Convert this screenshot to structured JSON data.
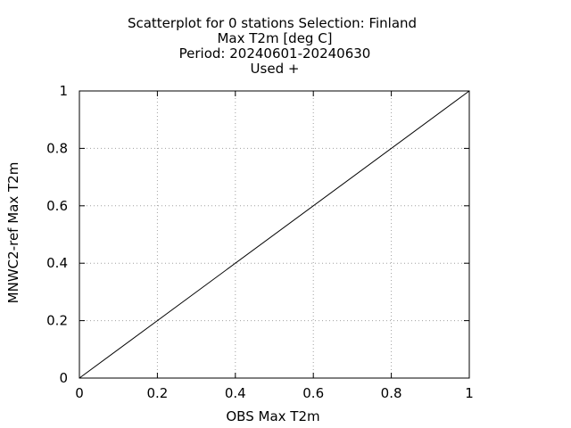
{
  "chart_data": {
    "type": "scatter",
    "title_lines": [
      "Scatterplot for    0 stations Selection: Finland",
      "Max T2m [deg C]",
      "Period: 20240601-20240630",
      "Used  +"
    ],
    "xlabel": "OBS Max T2m",
    "ylabel": "MNWC2-ref Max T2m",
    "xlim": [
      0,
      1
    ],
    "ylim": [
      0,
      1
    ],
    "x_ticks": [
      "0",
      "0.2",
      "0.4",
      "0.6",
      "0.8",
      "1"
    ],
    "y_ticks": [
      "0",
      "0.2",
      "0.4",
      "0.6",
      "0.8",
      "1"
    ],
    "grid": true,
    "reference_line": {
      "x": [
        0,
        1
      ],
      "y": [
        0,
        1
      ]
    },
    "series": [
      {
        "marker": "+",
        "x": [],
        "y": []
      }
    ],
    "colors": {
      "axis": "#000000",
      "grid": "#a0a0a0",
      "line": "#000000"
    }
  }
}
